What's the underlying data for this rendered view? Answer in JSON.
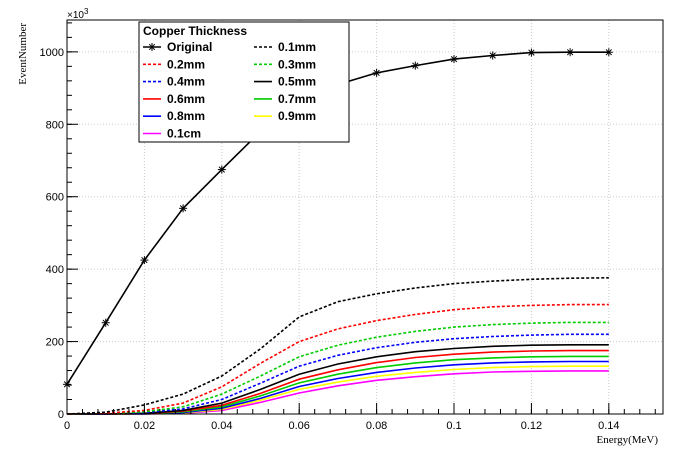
{
  "chart_data": {
    "type": "line",
    "title": "",
    "xlabel": "Energy(MeV)",
    "ylabel": "EventNumber",
    "y_multiplier_label": "×10",
    "y_multiplier_exponent": "3",
    "xlim": [
      0,
      0.154
    ],
    "ylim": [
      0,
      1088
    ],
    "x_ticks": [
      0,
      0.02,
      0.04,
      0.06,
      0.08,
      0.1,
      0.12,
      0.14
    ],
    "x_tick_labels": [
      "0",
      "0.02",
      "0.04",
      "0.06",
      "0.08",
      "0.1",
      "0.12",
      "0.14"
    ],
    "y_ticks": [
      0,
      200,
      400,
      600,
      800,
      1000
    ],
    "y_tick_labels": [
      "0",
      "200",
      "400",
      "600",
      "800",
      "1000"
    ],
    "grid": true,
    "legend": {
      "title": "Copper Thickness",
      "placement": "top-left"
    },
    "x": [
      0,
      0.01,
      0.02,
      0.03,
      0.04,
      0.05,
      0.06,
      0.07,
      0.08,
      0.09,
      0.1,
      0.11,
      0.12,
      0.13,
      0.14
    ],
    "series": [
      {
        "name": "Original",
        "color": "#000000",
        "style": "solid",
        "marker": "star",
        "values": [
          82,
          252,
          425,
          568,
          675,
          780,
          855,
          910,
          942,
          962,
          980,
          990,
          998,
          999,
          999
        ]
      },
      {
        "name": "0.1mm",
        "color": "#000000",
        "style": "dashed",
        "values": [
          0,
          5,
          25,
          55,
          105,
          180,
          268,
          310,
          332,
          348,
          360,
          367,
          372,
          375,
          376
        ]
      },
      {
        "name": "0.2mm",
        "color": "#ff0000",
        "style": "dashed",
        "values": [
          0,
          2,
          10,
          30,
          75,
          140,
          200,
          235,
          258,
          275,
          288,
          296,
          300,
          302,
          302
        ]
      },
      {
        "name": "0.3mm",
        "color": "#00cc00",
        "style": "dashed",
        "values": [
          0,
          1,
          6,
          20,
          55,
          105,
          158,
          190,
          212,
          228,
          240,
          247,
          251,
          253,
          253
        ]
      },
      {
        "name": "0.4mm",
        "color": "#0000ff",
        "style": "dashed",
        "values": [
          0,
          0,
          4,
          14,
          40,
          85,
          132,
          162,
          183,
          198,
          208,
          214,
          218,
          220,
          220
        ]
      },
      {
        "name": "0.5mm",
        "color": "#000000",
        "style": "solid",
        "values": [
          0,
          0,
          2,
          10,
          30,
          68,
          110,
          138,
          158,
          172,
          181,
          187,
          190,
          191,
          191
        ]
      },
      {
        "name": "0.6mm",
        "color": "#ff0000",
        "style": "solid",
        "values": [
          0,
          0,
          1,
          8,
          24,
          57,
          96,
          122,
          142,
          156,
          165,
          171,
          174,
          175,
          175
        ]
      },
      {
        "name": "0.7mm",
        "color": "#00cc00",
        "style": "solid",
        "values": [
          0,
          0,
          1,
          6,
          20,
          50,
          86,
          110,
          128,
          141,
          150,
          155,
          158,
          159,
          159
        ]
      },
      {
        "name": "0.8mm",
        "color": "#0000ff",
        "style": "solid",
        "values": [
          0,
          0,
          0,
          4,
          16,
          43,
          76,
          98,
          115,
          127,
          136,
          141,
          144,
          145,
          145
        ]
      },
      {
        "name": "0.9mm",
        "color": "#ffff00",
        "style": "solid",
        "values": [
          0,
          0,
          0,
          3,
          13,
          38,
          68,
          88,
          104,
          115,
          123,
          128,
          131,
          132,
          132
        ]
      },
      {
        "name": "0.1cm",
        "color": "#ff00ff",
        "style": "solid",
        "values": [
          0,
          0,
          0,
          2,
          10,
          32,
          58,
          78,
          93,
          103,
          111,
          116,
          118,
          119,
          119
        ]
      }
    ]
  }
}
